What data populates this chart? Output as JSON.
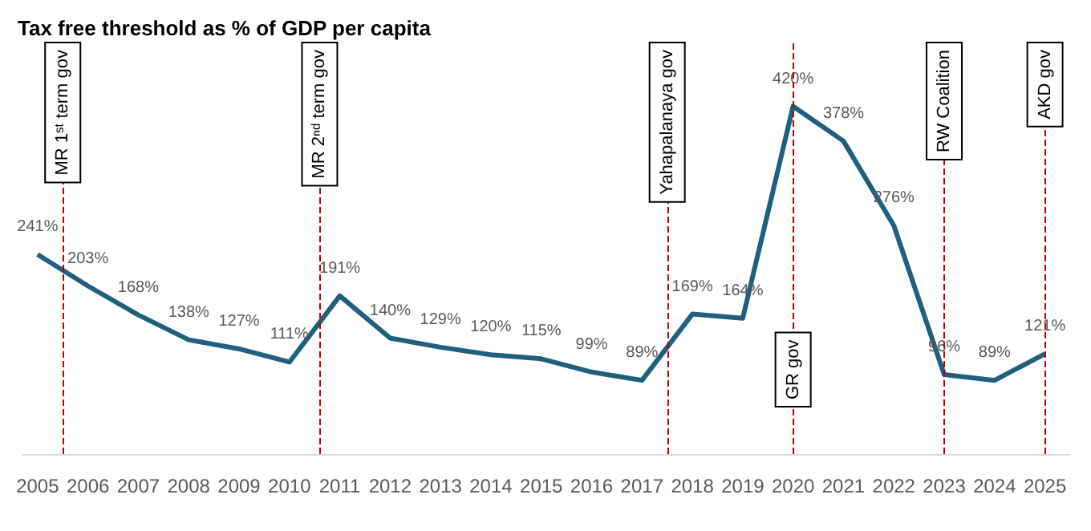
{
  "chart_data": {
    "type": "line",
    "title": "Tax free threshold as % of GDP per capita",
    "x": [
      2005,
      2006,
      2007,
      2008,
      2009,
      2010,
      2011,
      2012,
      2013,
      2014,
      2015,
      2016,
      2017,
      2018,
      2019,
      2020,
      2021,
      2022,
      2023,
      2024,
      2025
    ],
    "series": [
      {
        "color": "#1f5f80",
        "values": [
          241,
          203,
          168,
          138,
          127,
          111,
          191,
          140,
          129,
          120,
          115,
          99,
          89,
          169,
          164,
          420,
          378,
          276,
          96,
          89,
          121
        ],
        "value_labels": [
          "241%",
          "203%",
          "168%",
          "138%",
          "127%",
          "111%",
          "191%",
          "140%",
          "129%",
          "120%",
          "115%",
          "99%",
          "89%",
          "169%",
          "164%",
          "420%",
          "378%",
          "276%",
          "96%",
          "89%",
          "121%"
        ]
      }
    ],
    "xlim": [
      2004.7,
      2025.5
    ],
    "xticks": [
      2005,
      2006,
      2007,
      2008,
      2009,
      2010,
      2011,
      2012,
      2013,
      2014,
      2015,
      2016,
      2017,
      2018,
      2019,
      2020,
      2021,
      2022,
      2023,
      2024,
      2025
    ],
    "tick_labels": "x",
    "grid": false,
    "marker": "none",
    "line_style": "solid",
    "ref_lines": [
      {
        "axis": "x",
        "value": 2005.5,
        "label": "MR 1ˢᵗ term gov",
        "color": "#c00000",
        "line_style": "dashed"
      },
      {
        "axis": "x",
        "value": 2010.6,
        "label": "MR 2ⁿᵈ term gov",
        "color": "#c00000",
        "line_style": "dashed"
      },
      {
        "axis": "x",
        "value": 2017.5,
        "label": "Yahapalanaya gov",
        "color": "#c00000",
        "line_style": "dashed"
      },
      {
        "axis": "x",
        "value": 2020,
        "label": "GR gov",
        "color": "#c00000",
        "line_style": "dashed"
      },
      {
        "axis": "x",
        "value": 2023,
        "label": "RW Coalition",
        "color": "#c00000",
        "line_style": "dashed"
      },
      {
        "axis": "x",
        "value": 2025,
        "label": "AKD gov",
        "color": "#c00000",
        "line_style": "dashed"
      }
    ]
  }
}
